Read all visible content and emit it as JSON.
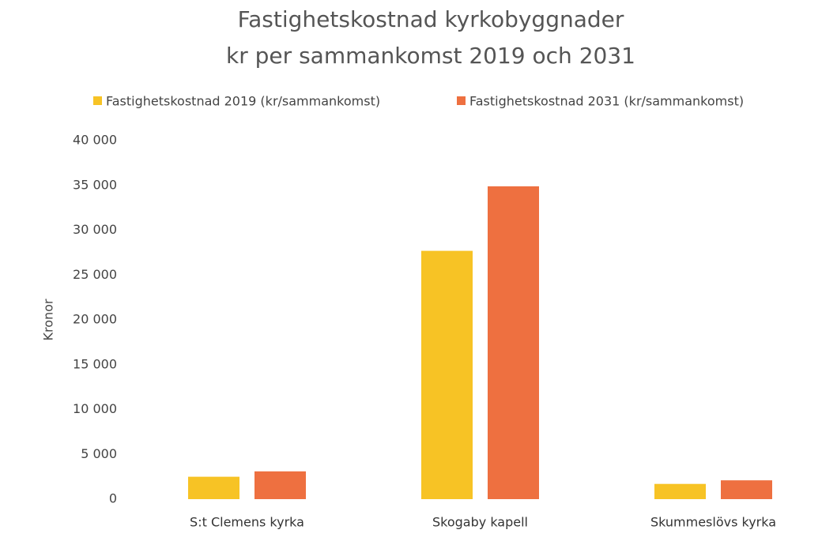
{
  "chart_data": {
    "type": "bar",
    "title": "Fastighetskostnad kyrkobyggnader",
    "subtitle": "kr per sammankomst 2019 och 2031",
    "y_label": "Kronor",
    "categories": [
      "S:t Clemens kyrka",
      "Skogaby kapell",
      "Skummeslövs kyrka"
    ],
    "series": [
      {
        "name": "Fastighetskostnad 2019 (kr/sammankomst)",
        "color": "#f7c325",
        "values": [
          2500,
          27700,
          1700
        ]
      },
      {
        "name": "Fastighetskostnad 2031 (kr/sammankomst)",
        "color": "#ee7040",
        "values": [
          3100,
          34900,
          2100
        ]
      }
    ],
    "ylim": [
      0,
      40000
    ],
    "yticks": [
      {
        "value": 0,
        "label": "0"
      },
      {
        "value": 5000,
        "label": "5 000"
      },
      {
        "value": 10000,
        "label": "10 000"
      },
      {
        "value": 15000,
        "label": "15 000"
      },
      {
        "value": 20000,
        "label": "20 000"
      },
      {
        "value": 25000,
        "label": "25 000"
      },
      {
        "value": 30000,
        "label": "30 000"
      },
      {
        "value": 35000,
        "label": "35 000"
      },
      {
        "value": 40000,
        "label": "40 000"
      }
    ],
    "grid": false,
    "legend": "top"
  }
}
